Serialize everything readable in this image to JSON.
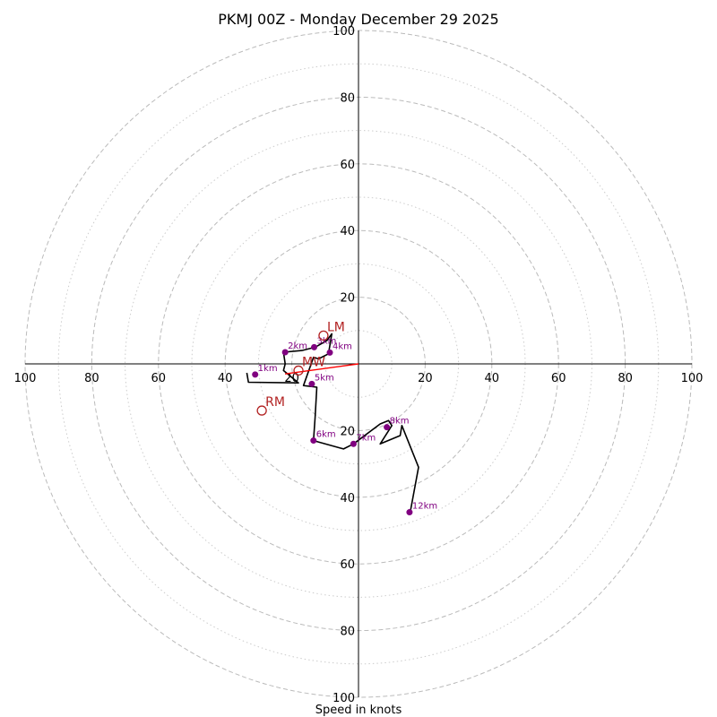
{
  "chart_data": {
    "type": "hodograph",
    "title": "PKMJ 00Z - Monday December 29 2025",
    "xlabel": "Speed in knots",
    "range": [
      -100,
      100
    ],
    "ring_major": [
      20,
      40,
      60,
      80,
      100
    ],
    "ring_minor": [
      10,
      30,
      50,
      70,
      90
    ],
    "x_tick_labels": [
      "100",
      "80",
      "60",
      "40",
      "20",
      "20",
      "40",
      "60",
      "80",
      "100"
    ],
    "x_tick_values": [
      -100,
      -80,
      -60,
      -40,
      -20,
      20,
      40,
      60,
      80,
      100
    ],
    "y_tick_labels_up": [
      "20",
      "40",
      "60",
      "80",
      "100"
    ],
    "y_tick_values_up": [
      20,
      40,
      60,
      80,
      100
    ],
    "y_tick_labels_down": [
      "20",
      "40",
      "60",
      "80",
      "100"
    ],
    "y_tick_values_down": [
      -20,
      -40,
      -60,
      -80,
      -100
    ],
    "hodograph_trace": [
      [
        -33.5,
        -2.7
      ],
      [
        -33.0,
        -5.5
      ],
      [
        -18.0,
        -5.7
      ],
      [
        -22.5,
        -2.0
      ],
      [
        -22.0,
        0.0
      ],
      [
        -22.5,
        3.5
      ],
      [
        -17.0,
        4.0
      ],
      [
        -13.0,
        5.0
      ],
      [
        -9.5,
        7.0
      ],
      [
        -8.0,
        9.0
      ],
      [
        -9.0,
        3.0
      ],
      [
        -12.0,
        1.5
      ],
      [
        -13.5,
        2.0
      ],
      [
        -16.5,
        -6.5
      ],
      [
        -12.5,
        -7.0
      ],
      [
        -13.0,
        -16.0
      ],
      [
        -13.5,
        -23.0
      ],
      [
        -4.5,
        -25.5
      ],
      [
        -1.5,
        -24.0
      ],
      [
        6.5,
        -18.0
      ],
      [
        9.0,
        -17.0
      ],
      [
        10.0,
        -18.5
      ],
      [
        6.5,
        -24.0
      ],
      [
        12.5,
        -21.5
      ],
      [
        13.0,
        -18.5
      ],
      [
        18.0,
        -31.0
      ],
      [
        15.5,
        -44.5
      ]
    ],
    "km_markers": [
      {
        "label": "1km",
        "u": -31.0,
        "v": -3.2
      },
      {
        "label": "2km",
        "u": -22.0,
        "v": 3.5
      },
      {
        "label": "3km",
        "u": -13.3,
        "v": 5.0
      },
      {
        "label": "4km",
        "u": -8.6,
        "v": 3.4
      },
      {
        "label": "5km",
        "u": -14.0,
        "v": -6.0
      },
      {
        "label": "6km",
        "u": -13.5,
        "v": -23.0
      },
      {
        "label": "7km",
        "u": -1.5,
        "v": -24.0
      },
      {
        "label": "8km",
        "u": 8.5,
        "v": -19.0
      },
      {
        "label": "12km",
        "u": 15.3,
        "v": -44.5
      }
    ],
    "storm_motion": [
      {
        "label": "LM",
        "u": -10.5,
        "v": 8.5
      },
      {
        "label": "MW",
        "u": -18.0,
        "v": -2.0
      },
      {
        "label": "RM",
        "u": -29.0,
        "v": -14.0
      }
    ],
    "shear_vector": {
      "from_u": 0,
      "from_v": 0,
      "to_u": -22.0,
      "to_v": -3.0
    },
    "colors": {
      "trace": "#000000",
      "marker": "#800080",
      "motion": "#b22222",
      "shear": "#ff0000",
      "ring": "#bbbbbb",
      "axis": "#000000"
    }
  }
}
